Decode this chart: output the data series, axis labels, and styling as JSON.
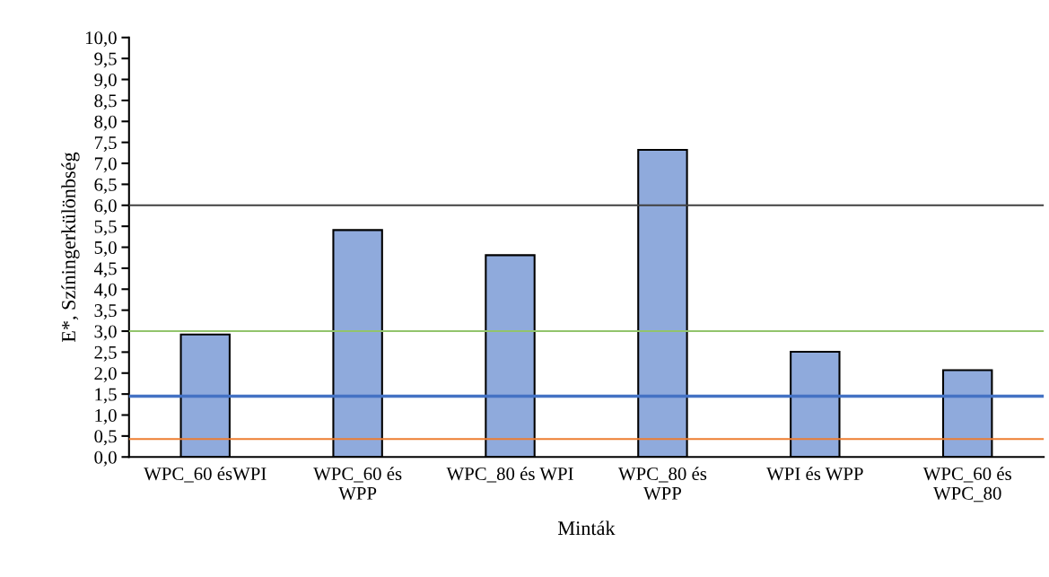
{
  "chart_data": {
    "type": "bar",
    "xlabel": "Minták",
    "ylabel": "E*, Színingerkülönbség",
    "categories": [
      "WPC_60 ésWPI",
      "WPC_60 és\nWPP",
      "WPC_80 és WPI",
      "WPC_80 és\nWPP",
      "WPI és WPP",
      "WPC_60 és\nWPC_80"
    ],
    "values": [
      2.92,
      5.41,
      4.81,
      7.32,
      2.51,
      2.07
    ],
    "color": "#8faadc",
    "ylim": [
      0,
      10
    ],
    "yticks": [
      {
        "value": 0,
        "label": "0,0"
      },
      {
        "value": 0.5,
        "label": "0,5"
      },
      {
        "value": 1,
        "label": "1,0"
      },
      {
        "value": 1.5,
        "label": "1,5"
      },
      {
        "value": 2,
        "label": "2,0"
      },
      {
        "value": 2.5,
        "label": "2,5"
      },
      {
        "value": 3,
        "label": "3,0"
      },
      {
        "value": 3.5,
        "label": "3,5"
      },
      {
        "value": 4,
        "label": "4,0"
      },
      {
        "value": 4.5,
        "label": "4,5"
      },
      {
        "value": 5,
        "label": "5,0"
      },
      {
        "value": 5.5,
        "label": "5,5"
      },
      {
        "value": 6,
        "label": "6,0"
      },
      {
        "value": 6.5,
        "label": "6,5"
      },
      {
        "value": 7,
        "label": "7,0"
      },
      {
        "value": 7.5,
        "label": "7,5"
      },
      {
        "value": 8,
        "label": "8,0"
      },
      {
        "value": 8.5,
        "label": "8,5"
      },
      {
        "value": 9,
        "label": "9,0"
      },
      {
        "value": 9.5,
        "label": "9,5"
      },
      {
        "value": 10,
        "label": "10,0"
      }
    ],
    "ref_lines": [
      {
        "axis": "y",
        "value": 6,
        "color": "#404040"
      },
      {
        "axis": "y",
        "value": 3,
        "color": "#92c46c"
      },
      {
        "axis": "y",
        "value": 1.45,
        "color": "#4472c4"
      },
      {
        "axis": "y",
        "value": 0.43,
        "color": "#ed7d31"
      }
    ],
    "grid": false,
    "legend": false
  }
}
